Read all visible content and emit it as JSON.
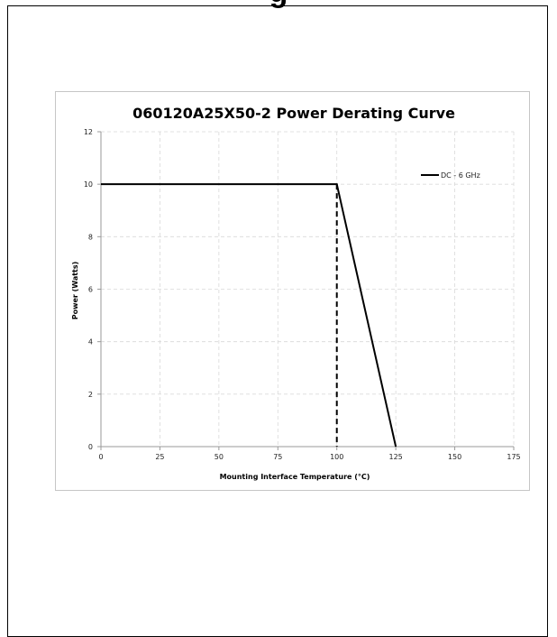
{
  "page": {
    "heading_fragment": "g"
  },
  "chart_data": {
    "type": "line",
    "title": "060120A25X50-2 Power Derating Curve",
    "xlabel": "Mounting Interface Temperature (°C)",
    "ylabel": "Power (Watts)",
    "xlim": [
      0,
      175
    ],
    "ylim": [
      0,
      12
    ],
    "x_ticks": [
      0,
      25,
      50,
      75,
      100,
      125,
      150,
      175
    ],
    "y_ticks": [
      0,
      2,
      4,
      6,
      8,
      10,
      12
    ],
    "grid": true,
    "legend_position": "top-right",
    "series": [
      {
        "name": "DC - 6 GHz",
        "x": [
          0,
          100,
          125
        ],
        "y": [
          10,
          10,
          0
        ],
        "color": "#000000",
        "style": "solid"
      },
      {
        "x": [
          100,
          100
        ],
        "y": [
          10,
          0
        ],
        "color": "#000000",
        "style": "dashed"
      }
    ]
  }
}
